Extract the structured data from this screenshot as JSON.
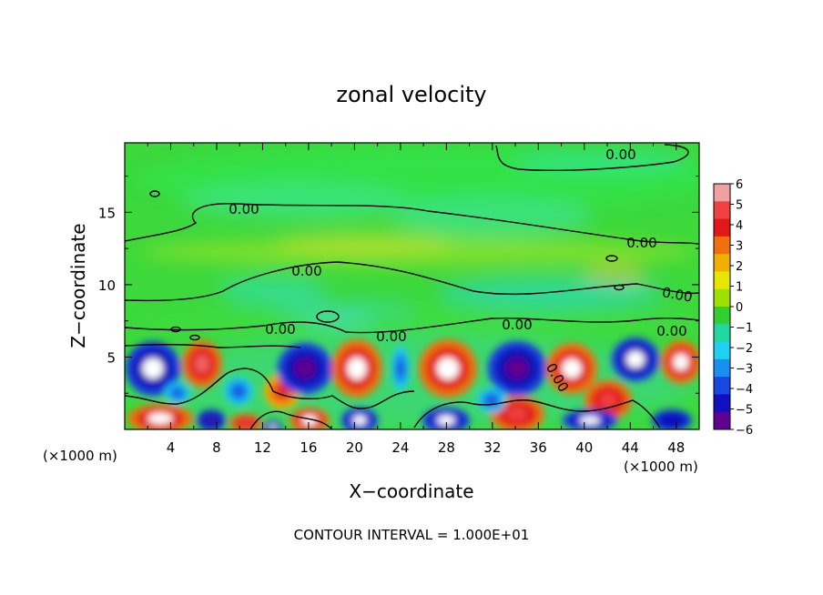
{
  "chart_data": {
    "type": "heatmap",
    "title": "zonal velocity",
    "xlabel": "X−coordinate",
    "ylabel": "Z−coordinate",
    "x_unit_left": "(×1000 m)",
    "x_unit_right": "(×1000 m)",
    "footer": "CONTOUR INTERVAL = 1.000E+01",
    "xlim": [
      0,
      50
    ],
    "ylim": [
      0,
      19.8
    ],
    "x_ticks": [
      "4",
      "8",
      "12",
      "16",
      "20",
      "24",
      "28",
      "32",
      "36",
      "40",
      "44",
      "48"
    ],
    "y_ticks": [
      "5",
      "10",
      "15"
    ],
    "colorbar": {
      "min": -6,
      "max": 6,
      "ticks": [
        "6",
        "5",
        "4",
        "3",
        "2",
        "1",
        "0",
        "−1",
        "−2",
        "−3",
        "−4",
        "−5",
        "−6"
      ],
      "colors": [
        "#f0a0a0",
        "#f04040",
        "#e01818",
        "#f07010",
        "#f0b000",
        "#e6e600",
        "#a0e000",
        "#30d030",
        "#20d8a0",
        "#20d0f0",
        "#1890f0",
        "#1848e0",
        "#1010c0",
        "#600090"
      ]
    },
    "contour_labels": [
      "0.00",
      "0.00",
      "0.00",
      "0.00",
      "0.00",
      "0.00",
      "0.00",
      "0.00",
      "0.00",
      "0.00"
    ]
  }
}
